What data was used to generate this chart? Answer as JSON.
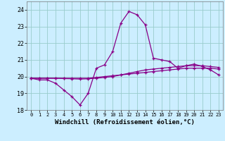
{
  "xlabel": "Windchill (Refroidissement éolien,°C)",
  "bg_color": "#cceeff",
  "line_color": "#880088",
  "grid_color": "#99cccc",
  "ylim": [
    18,
    24.5
  ],
  "xlim": [
    -0.5,
    23.5
  ],
  "yticks": [
    18,
    19,
    20,
    21,
    22,
    23,
    24
  ],
  "xticks": [
    0,
    1,
    2,
    3,
    4,
    5,
    6,
    7,
    8,
    9,
    10,
    11,
    12,
    13,
    14,
    15,
    16,
    17,
    18,
    19,
    20,
    21,
    22,
    23
  ],
  "hours": [
    0,
    1,
    2,
    3,
    4,
    5,
    6,
    7,
    8,
    9,
    10,
    11,
    12,
    13,
    14,
    15,
    16,
    17,
    18,
    19,
    20,
    21,
    22,
    23
  ],
  "temp_curve": [
    19.9,
    19.8,
    19.8,
    19.6,
    19.2,
    18.8,
    18.3,
    19.0,
    20.5,
    20.7,
    21.5,
    23.2,
    23.9,
    23.7,
    23.1,
    21.1,
    21.0,
    20.9,
    20.5,
    20.65,
    20.75,
    20.6,
    20.4,
    20.1
  ],
  "line1": [
    19.9,
    19.9,
    19.9,
    19.9,
    19.9,
    19.9,
    19.9,
    19.9,
    19.95,
    20.0,
    20.05,
    20.1,
    20.15,
    20.2,
    20.25,
    20.3,
    20.35,
    20.4,
    20.45,
    20.5,
    20.5,
    20.5,
    20.5,
    20.45
  ],
  "line2": [
    19.9,
    19.9,
    19.9,
    19.9,
    19.88,
    19.87,
    19.85,
    19.87,
    19.9,
    19.95,
    20.0,
    20.1,
    20.2,
    20.3,
    20.4,
    20.45,
    20.5,
    20.55,
    20.6,
    20.65,
    20.65,
    20.65,
    20.6,
    20.55
  ]
}
